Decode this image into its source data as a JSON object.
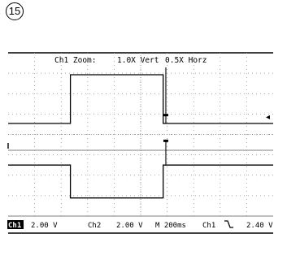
{
  "figure_number": "15",
  "chart_data": {
    "type": "line",
    "title": "Ch1 Zoom:   1.0X Vert   0.5X Horz",
    "title_parts": [
      "Ch1 Zoom:",
      "1.0X Vert",
      "0.5X Horz"
    ],
    "grid": true,
    "xlim": [
      0,
      10
    ],
    "x_divisions": 10,
    "y_divisions": 8,
    "screens": [
      {
        "name": "main",
        "series": [
          {
            "x": [
              0,
              2.35,
              2.35,
              5.85,
              5.85,
              10
            ],
            "y": [
              0,
              0,
              1,
              1,
              0,
              0
            ]
          }
        ],
        "ylim": [
          -0.55,
          1.45
        ],
        "glitches": [
          {
            "x": 5.95,
            "y_from": 0,
            "y_to": 1.15,
            "thick_to": 0.18
          }
        ]
      },
      {
        "name": "zoom",
        "series": [
          {
            "x": [
              0,
              2.35,
              2.35,
              5.85,
              5.85,
              10
            ],
            "y": [
              1,
              1,
              0,
              0,
              1,
              1
            ]
          }
        ],
        "ylim": [
          -0.55,
          1.45
        ],
        "glitches": [
          {
            "x": 5.95,
            "y_from": 1,
            "y_to": 1.75,
            "thick_to": 1.75
          }
        ]
      }
    ],
    "status": {
      "ch1_badge": "Ch1",
      "ch1_scale": "2.00 V",
      "ch2_label": "Ch2",
      "ch2_scale": "2.00 V",
      "timebase": "M 200ms",
      "trigger_source": "Ch1",
      "trigger_slope_icon": "falling-edge-icon",
      "trigger_level": "2.40 V"
    },
    "colors": {
      "trace": "#000000",
      "grid": "#888888",
      "background": "#ffffff"
    }
  }
}
